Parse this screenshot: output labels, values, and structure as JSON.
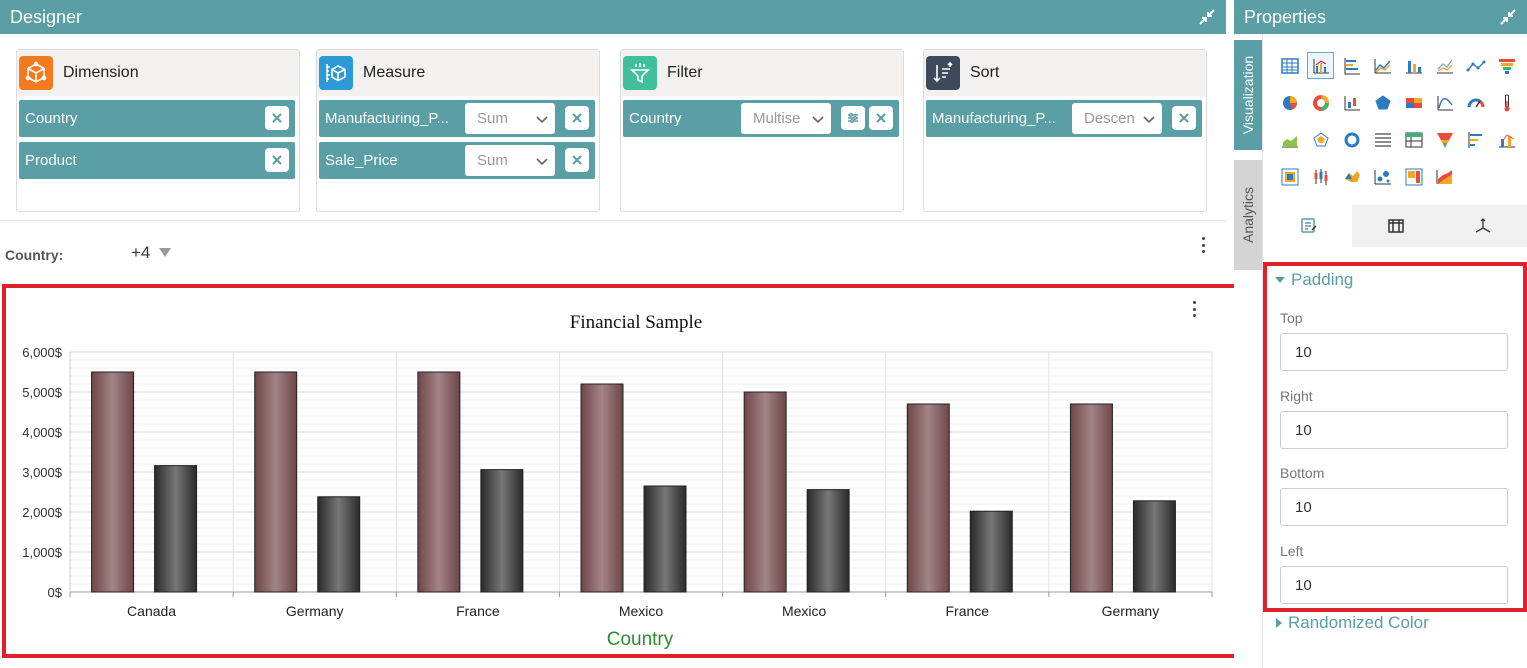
{
  "designer": {
    "title": "Designer",
    "wells": [
      {
        "title": "Dimension",
        "icon": "cube-icon",
        "color": "#f47a20",
        "items": [
          {
            "label": "Country"
          },
          {
            "label": "Product"
          }
        ]
      },
      {
        "title": "Measure",
        "icon": "ruler-cube-icon",
        "color": "#2b9ad6",
        "items": [
          {
            "label": "Manufacturing_P...",
            "agg": "Sum"
          },
          {
            "label": "Sale_Price",
            "agg": "Sum"
          }
        ]
      },
      {
        "title": "Filter",
        "icon": "funnel-icon",
        "color": "#3fbf9a",
        "items": [
          {
            "label": "Country",
            "mode": "Multise"
          }
        ]
      },
      {
        "title": "Sort",
        "icon": "sort-icon",
        "color": "#3e4a5c",
        "items": [
          {
            "label": "Manufacturing_P...",
            "order": "Descen"
          }
        ]
      }
    ],
    "filter": {
      "label": "Country:",
      "value": "+4"
    }
  },
  "chart_data": {
    "type": "bar",
    "title": "Financial Sample",
    "xlabel": "Country",
    "ylabel": "",
    "categories": [
      "Canada",
      "Germany",
      "France",
      "Mexico",
      "Mexico",
      "France",
      "Germany"
    ],
    "series": [
      {
        "values": [
          5500,
          5500,
          5500,
          5200,
          5000,
          4700,
          4700
        ],
        "color": "#8e6466"
      },
      {
        "values": [
          3160,
          2380,
          3060,
          2650,
          2560,
          2020,
          2280
        ],
        "color": "#4a4a4a"
      }
    ],
    "ylim": [
      0,
      6000
    ],
    "yticks": [
      "0$",
      "1,000$",
      "2,000$",
      "3,000$",
      "4,000$",
      "5,000$",
      "6,000$"
    ],
    "grid": true,
    "legend": "none"
  },
  "properties": {
    "title": "Properties",
    "tabs": {
      "visualization": "Visualization",
      "analytics": "Analytics"
    },
    "padding": {
      "title": "Padding",
      "top_label": "Top",
      "top": "10",
      "right_label": "Right",
      "right": "10",
      "bottom_label": "Bottom",
      "bottom": "10",
      "left_label": "Left",
      "left": "10"
    },
    "randomized_color": "Randomized Color"
  }
}
